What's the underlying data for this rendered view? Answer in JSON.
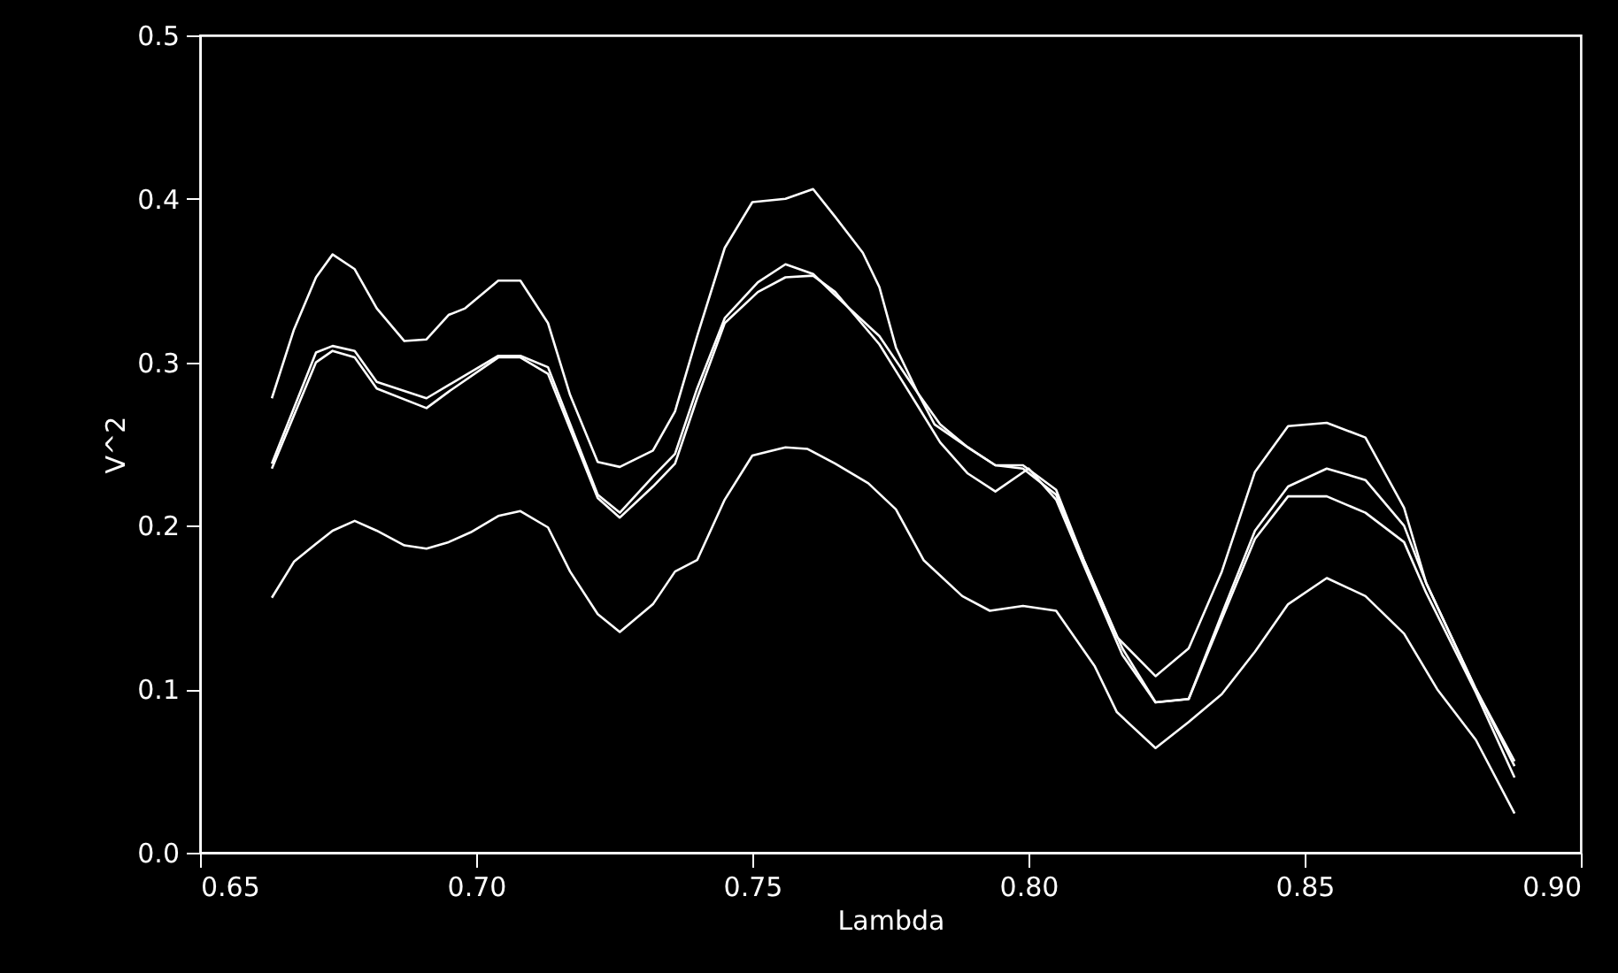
{
  "chart_data": {
    "type": "line",
    "xlabel": "Lambda",
    "ylabel": "V^2",
    "xlim": [
      0.65,
      0.9
    ],
    "xticks": [
      {
        "value": 0.65,
        "label": "0.65"
      },
      {
        "value": 0.7,
        "label": "0.70"
      },
      0.75,
      {
        "value": 0.8,
        "label": "0.80"
      },
      0.85,
      {
        "value": 0.9,
        "label": "0.90"
      }
    ],
    "ylim": [
      0,
      0.5
    ],
    "yticks": [
      {
        "value": 0,
        "label": "0.0"
      },
      0.1,
      0.2,
      0.3,
      0.4,
      0.5
    ],
    "grid": false,
    "marker": "none",
    "line_style": "solid",
    "series": [
      {
        "color": "#ffffff",
        "x": [
          0.663,
          0.667,
          0.671,
          0.674,
          0.678,
          0.682,
          0.687,
          0.691,
          0.695,
          0.698,
          0.704,
          0.708,
          0.713,
          0.717,
          0.722,
          0.726,
          0.732,
          0.736,
          0.74,
          0.745,
          0.75,
          0.756,
          0.761,
          0.765,
          0.77,
          0.773,
          0.776,
          0.78,
          0.783,
          0.789,
          0.794,
          0.799,
          0.805,
          0.81,
          0.816,
          0.823,
          0.829,
          0.835,
          0.841,
          0.847,
          0.854,
          0.861,
          0.868,
          0.872,
          0.881,
          0.888
        ],
        "values": [
          0.278,
          0.32,
          0.352,
          0.366,
          0.357,
          0.333,
          0.313,
          0.314,
          0.329,
          0.333,
          0.35,
          0.35,
          0.324,
          0.28,
          0.239,
          0.236,
          0.246,
          0.27,
          0.316,
          0.37,
          0.398,
          0.4,
          0.406,
          0.389,
          0.367,
          0.346,
          0.309,
          0.281,
          0.262,
          0.248,
          0.237,
          0.237,
          0.222,
          0.179,
          0.132,
          0.108,
          0.125,
          0.172,
          0.233,
          0.261,
          0.263,
          0.254,
          0.211,
          0.165,
          0.1,
          0.056
        ]
      },
      {
        "color": "#ffffff",
        "x": [
          0.663,
          0.671,
          0.674,
          0.678,
          0.682,
          0.691,
          0.695,
          0.704,
          0.708,
          0.713,
          0.722,
          0.726,
          0.732,
          0.736,
          0.74,
          0.745,
          0.751,
          0.756,
          0.761,
          0.765,
          0.773,
          0.78,
          0.784,
          0.789,
          0.794,
          0.799,
          0.805,
          0.81,
          0.817,
          0.823,
          0.829,
          0.835,
          0.841,
          0.847,
          0.854,
          0.861,
          0.868,
          0.872,
          0.881,
          0.888
        ],
        "values": [
          0.238,
          0.306,
          0.31,
          0.307,
          0.288,
          0.278,
          0.286,
          0.304,
          0.304,
          0.297,
          0.219,
          0.208,
          0.23,
          0.244,
          0.284,
          0.327,
          0.349,
          0.36,
          0.354,
          0.341,
          0.316,
          0.281,
          0.262,
          0.248,
          0.237,
          0.235,
          0.219,
          0.179,
          0.125,
          0.092,
          0.094,
          0.146,
          0.197,
          0.224,
          0.235,
          0.228,
          0.2,
          0.165,
          0.1,
          0.053
        ]
      },
      {
        "color": "#ffffff",
        "x": [
          0.663,
          0.671,
          0.674,
          0.678,
          0.682,
          0.691,
          0.695,
          0.704,
          0.708,
          0.713,
          0.722,
          0.726,
          0.732,
          0.736,
          0.74,
          0.745,
          0.751,
          0.756,
          0.761,
          0.765,
          0.773,
          0.78,
          0.784,
          0.789,
          0.794,
          0.8,
          0.805,
          0.81,
          0.817,
          0.823,
          0.829,
          0.835,
          0.841,
          0.847,
          0.854,
          0.861,
          0.868,
          0.872,
          0.881,
          0.888
        ],
        "values": [
          0.235,
          0.3,
          0.307,
          0.303,
          0.284,
          0.272,
          0.282,
          0.303,
          0.303,
          0.293,
          0.217,
          0.205,
          0.224,
          0.238,
          0.278,
          0.324,
          0.343,
          0.352,
          0.353,
          0.343,
          0.311,
          0.273,
          0.251,
          0.232,
          0.221,
          0.235,
          0.216,
          0.176,
          0.121,
          0.092,
          0.094,
          0.143,
          0.192,
          0.218,
          0.218,
          0.208,
          0.19,
          0.159,
          0.098,
          0.046
        ]
      },
      {
        "color": "#ffffff",
        "x": [
          0.663,
          0.667,
          0.671,
          0.674,
          0.678,
          0.682,
          0.687,
          0.691,
          0.695,
          0.699,
          0.704,
          0.708,
          0.713,
          0.717,
          0.722,
          0.726,
          0.732,
          0.736,
          0.74,
          0.745,
          0.75,
          0.756,
          0.76,
          0.765,
          0.771,
          0.776,
          0.781,
          0.788,
          0.793,
          0.799,
          0.805,
          0.812,
          0.816,
          0.823,
          0.829,
          0.835,
          0.841,
          0.847,
          0.854,
          0.861,
          0.868,
          0.874,
          0.881,
          0.888
        ],
        "values": [
          0.156,
          0.178,
          0.189,
          0.197,
          0.203,
          0.197,
          0.188,
          0.186,
          0.19,
          0.196,
          0.206,
          0.209,
          0.199,
          0.172,
          0.146,
          0.135,
          0.152,
          0.172,
          0.179,
          0.216,
          0.243,
          0.248,
          0.247,
          0.238,
          0.226,
          0.21,
          0.179,
          0.157,
          0.148,
          0.151,
          0.148,
          0.114,
          0.086,
          0.064,
          0.08,
          0.097,
          0.123,
          0.152,
          0.168,
          0.157,
          0.134,
          0.1,
          0.069,
          0.024
        ]
      }
    ]
  }
}
